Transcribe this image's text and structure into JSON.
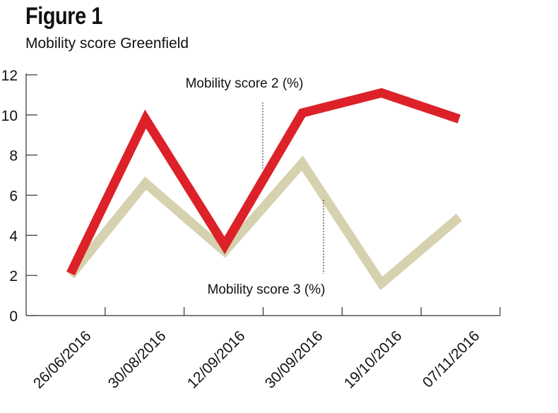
{
  "chart_data": {
    "type": "line",
    "title": "Figure 1",
    "subtitle": "Mobility score Greenfield",
    "categories": [
      "26/06/2016",
      "30/08/2016",
      "12/09/2016",
      "30/09/2016",
      "19/10/2016",
      "07/11/2016"
    ],
    "series": [
      {
        "name": "Mobility score 2 (%)",
        "color": "#dc2228",
        "values": [
          2.1,
          9.8,
          3.5,
          10.1,
          11.1,
          9.8
        ]
      },
      {
        "name": "Mobility score 3 (%)",
        "color": "#d6d1ae",
        "values": [
          2.0,
          6.6,
          3.2,
          7.6,
          1.6,
          4.9
        ]
      }
    ],
    "yticks": [
      0,
      2,
      4,
      6,
      8,
      10,
      12
    ],
    "ylim": [
      0,
      12
    ],
    "xlabel": "",
    "ylabel": "",
    "grid": false
  }
}
